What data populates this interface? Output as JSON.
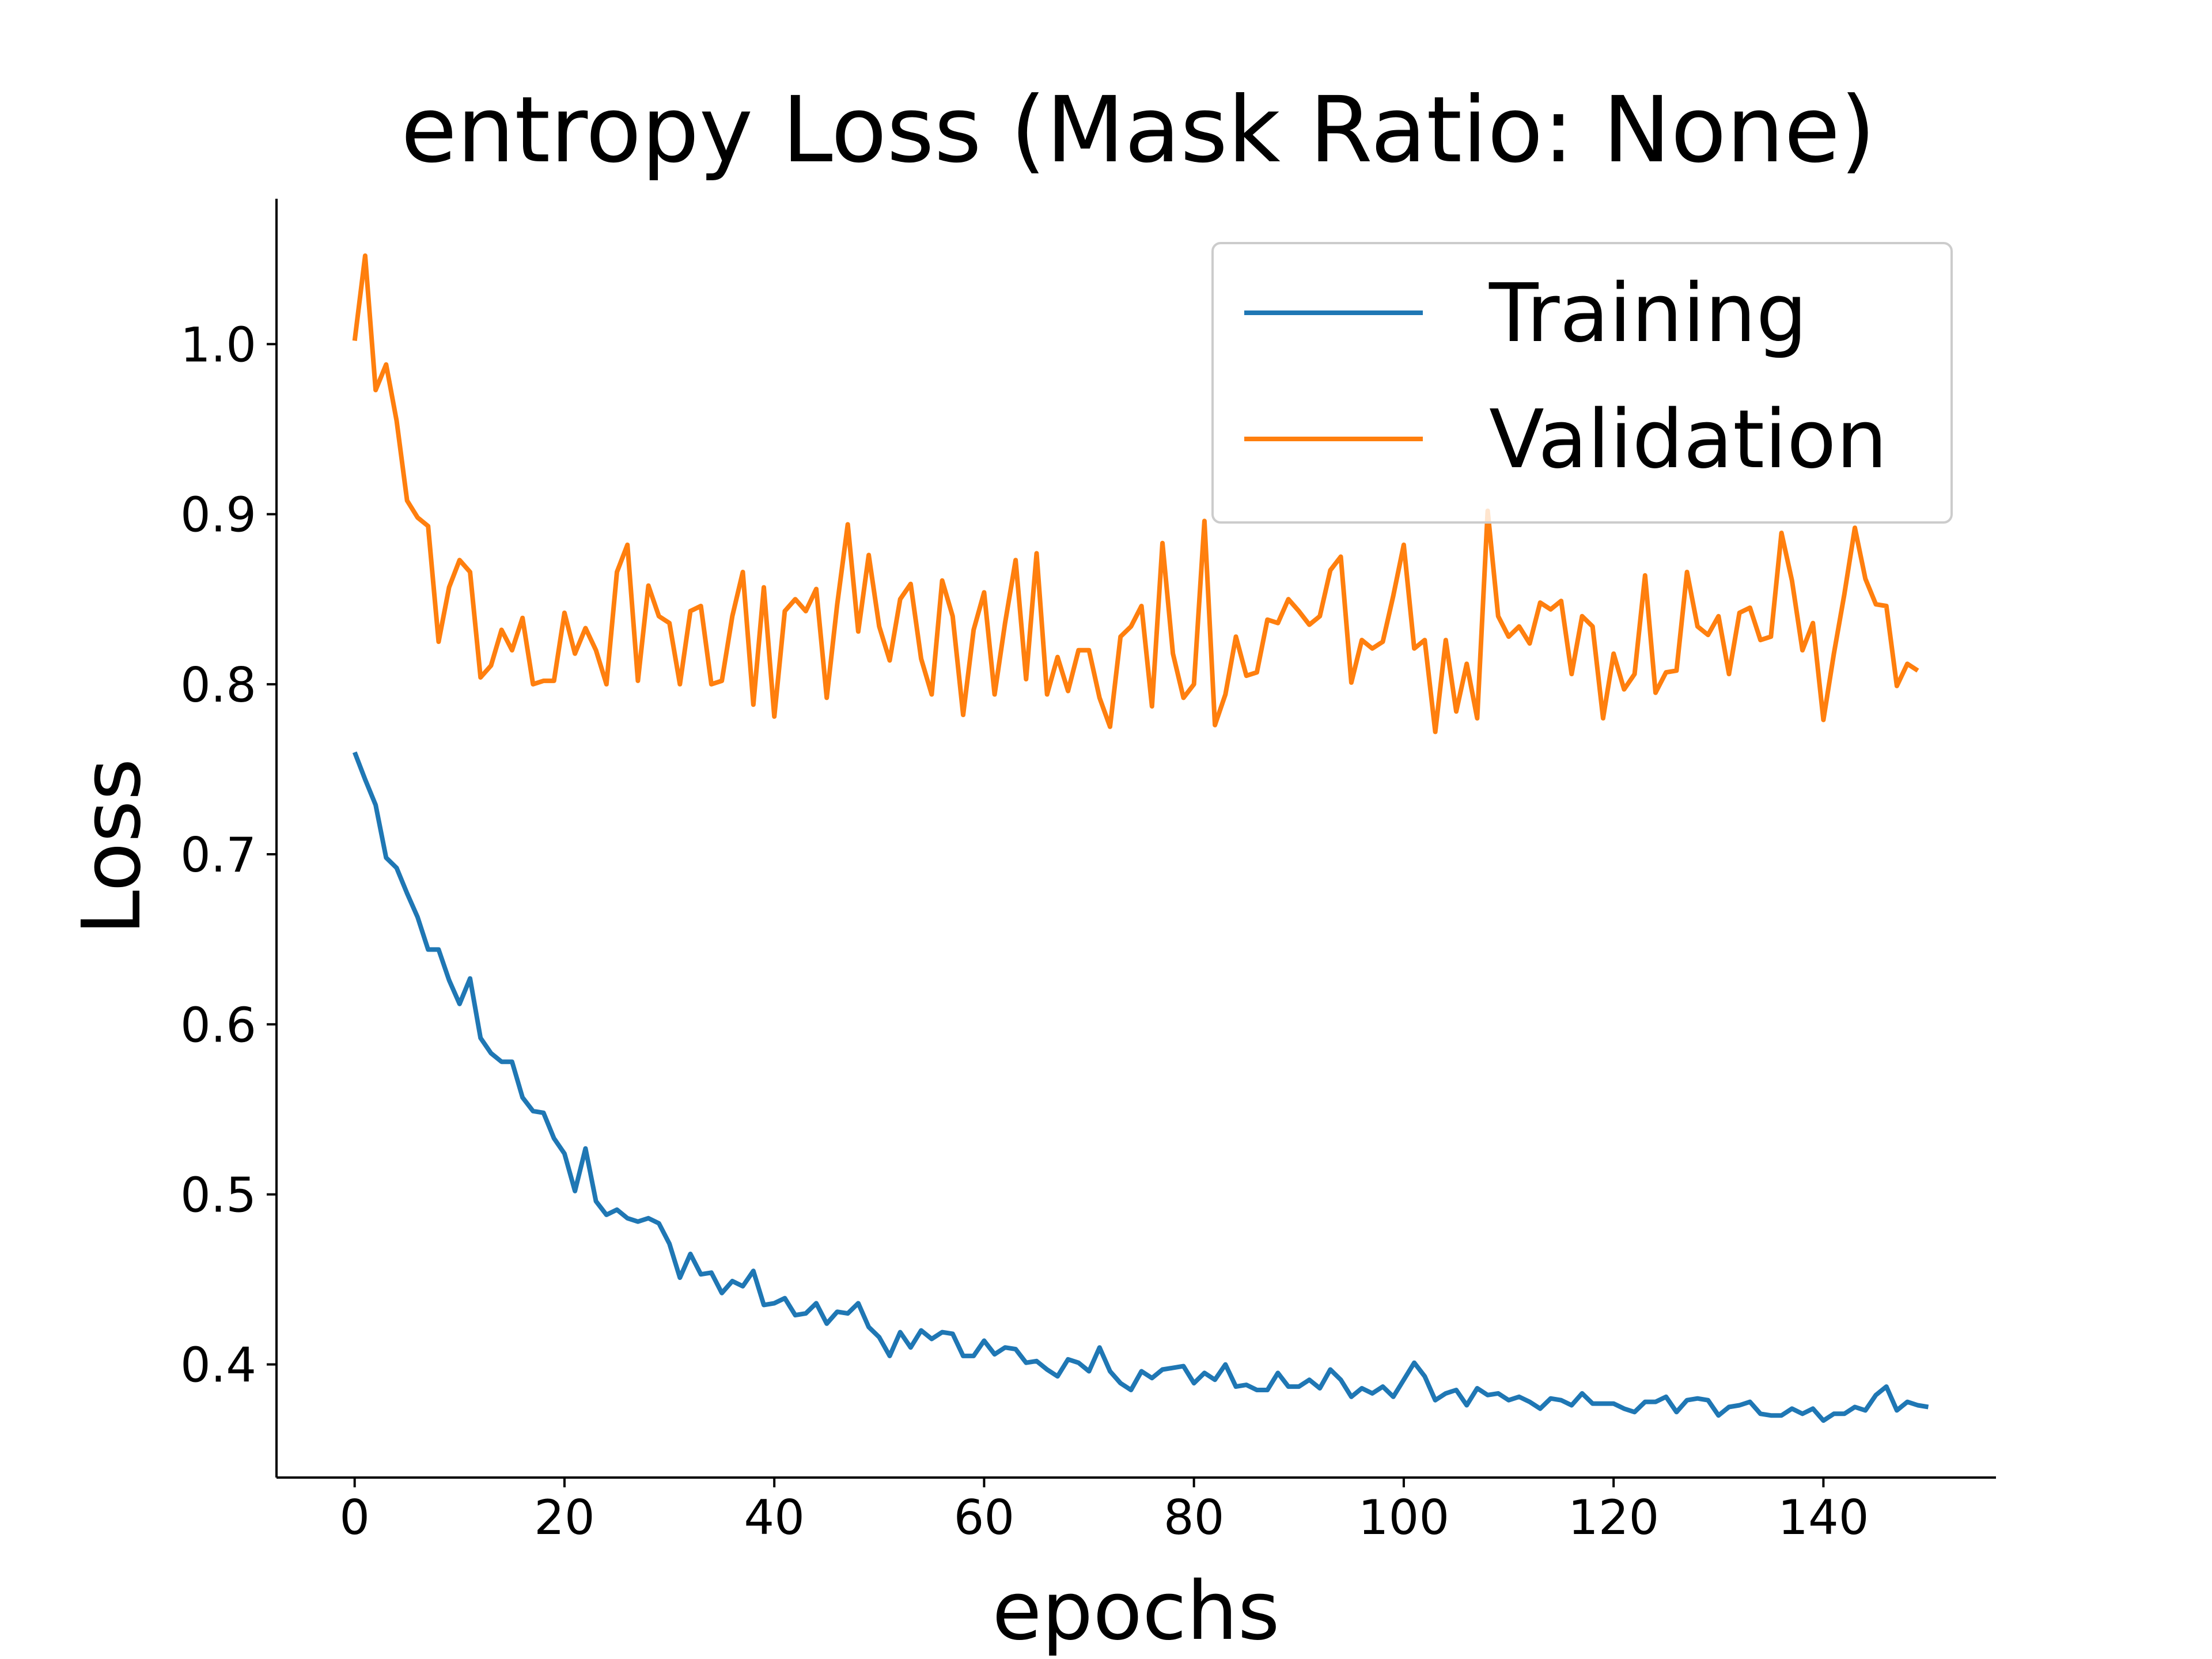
{
  "chart_data": {
    "type": "line",
    "title": "entropy Loss (Mask Ratio: None)",
    "xlabel": "epochs",
    "ylabel": "Loss",
    "xlim": [
      -7.45,
      156.45
    ],
    "ylim": [
      0.3335,
      1.0855
    ],
    "xticks": [
      0,
      20,
      40,
      60,
      80,
      100,
      120,
      140
    ],
    "yticks": [
      0.4,
      0.5,
      0.6,
      0.7,
      0.8,
      0.9,
      1.0
    ],
    "xtick_labels": [
      "0",
      "20",
      "40",
      "60",
      "80",
      "100",
      "120",
      "140"
    ],
    "ytick_labels": [
      "0.4",
      "0.5",
      "0.6",
      "0.7",
      "0.8",
      "0.9",
      "1.0"
    ],
    "grid": false,
    "legend_position": "top-right",
    "series": [
      {
        "name": "Training",
        "color": "#1f77b4",
        "values": [
          0.76,
          0.744,
          0.729,
          0.698,
          0.692,
          0.677,
          0.663,
          0.644,
          0.644,
          0.626,
          0.612,
          0.627,
          0.592,
          0.583,
          0.578,
          0.578,
          0.557,
          0.549,
          0.548,
          0.533,
          0.524,
          0.502,
          0.527,
          0.496,
          0.488,
          0.491,
          0.486,
          0.484,
          0.486,
          0.483,
          0.471,
          0.451,
          0.465,
          0.453,
          0.454,
          0.442,
          0.449,
          0.446,
          0.455,
          0.435,
          0.436,
          0.439,
          0.429,
          0.43,
          0.436,
          0.424,
          0.431,
          0.43,
          0.436,
          0.422,
          0.416,
          0.405,
          0.419,
          0.41,
          0.42,
          0.415,
          0.419,
          0.418,
          0.405,
          0.405,
          0.414,
          0.406,
          0.41,
          0.409,
          0.401,
          0.402,
          0.397,
          0.393,
          0.403,
          0.401,
          0.396,
          0.41,
          0.396,
          0.389,
          0.385,
          0.396,
          0.392,
          0.397,
          0.398,
          0.399,
          0.389,
          0.395,
          0.391,
          0.4,
          0.387,
          0.388,
          0.385,
          0.385,
          0.395,
          0.387,
          0.387,
          0.391,
          0.386,
          0.397,
          0.391,
          0.381,
          0.386,
          0.383,
          0.387,
          0.381,
          0.391,
          0.401,
          0.393,
          0.379,
          0.383,
          0.385,
          0.376,
          0.386,
          0.382,
          0.383,
          0.379,
          0.381,
          0.378,
          0.374,
          0.38,
          0.379,
          0.376,
          0.383,
          0.377,
          0.377,
          0.377,
          0.374,
          0.372,
          0.378,
          0.378,
          0.381,
          0.372,
          0.379,
          0.38,
          0.379,
          0.37,
          0.375,
          0.376,
          0.378,
          0.371,
          0.37,
          0.37,
          0.374,
          0.371,
          0.374,
          0.367,
          0.371,
          0.371,
          0.375,
          0.373,
          0.382,
          0.387,
          0.373,
          0.378,
          0.376,
          0.375
        ]
      },
      {
        "name": "Validation",
        "color": "#ff7f0e",
        "values": [
          1.002,
          1.052,
          0.973,
          0.988,
          0.955,
          0.908,
          0.898,
          0.893,
          0.825,
          0.857,
          0.873,
          0.866,
          0.804,
          0.811,
          0.832,
          0.82,
          0.839,
          0.8,
          0.802,
          0.802,
          0.842,
          0.818,
          0.833,
          0.82,
          0.8,
          0.866,
          0.882,
          0.802,
          0.858,
          0.84,
          0.836,
          0.8,
          0.843,
          0.846,
          0.8,
          0.802,
          0.84,
          0.866,
          0.788,
          0.857,
          0.781,
          0.843,
          0.85,
          0.843,
          0.856,
          0.792,
          0.847,
          0.894,
          0.831,
          0.876,
          0.834,
          0.814,
          0.85,
          0.859,
          0.815,
          0.794,
          0.861,
          0.84,
          0.782,
          0.832,
          0.854,
          0.794,
          0.836,
          0.873,
          0.803,
          0.877,
          0.794,
          0.816,
          0.796,
          0.82,
          0.82,
          0.792,
          0.775,
          0.828,
          0.834,
          0.846,
          0.787,
          0.883,
          0.818,
          0.792,
          0.8,
          0.896,
          0.776,
          0.794,
          0.828,
          0.805,
          0.807,
          0.838,
          0.836,
          0.85,
          0.843,
          0.835,
          0.84,
          0.867,
          0.875,
          0.801,
          0.826,
          0.821,
          0.825,
          0.852,
          0.882,
          0.821,
          0.826,
          0.772,
          0.826,
          0.784,
          0.812,
          0.78,
          0.902,
          0.84,
          0.828,
          0.834,
          0.824,
          0.848,
          0.844,
          0.849,
          0.806,
          0.84,
          0.834,
          0.78,
          0.818,
          0.797,
          0.806,
          0.864,
          0.795,
          0.807,
          0.808,
          0.866,
          0.834,
          0.829,
          0.84,
          0.806,
          0.842,
          0.845,
          0.826,
          0.828,
          0.889,
          0.861,
          0.82,
          0.836,
          0.779,
          0.818,
          0.853,
          0.892,
          0.862,
          0.847,
          0.846,
          0.799,
          0.812,
          0.808
        ]
      }
    ]
  }
}
